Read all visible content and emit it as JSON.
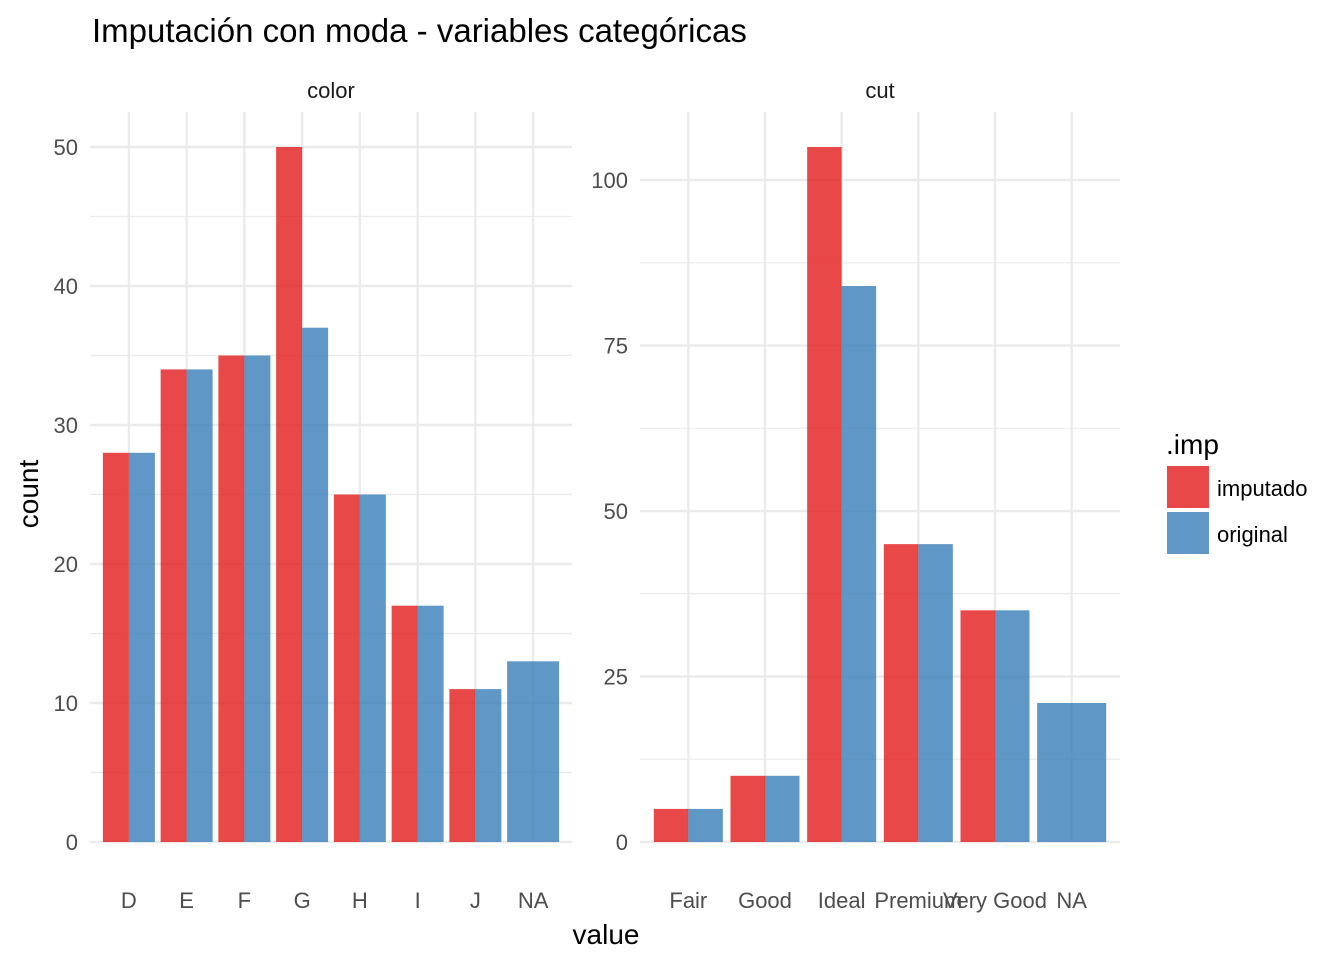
{
  "chart_data": {
    "type": "bar",
    "title": "Imputación con moda - variables categóricas",
    "xlabel": "value",
    "ylabel": "count",
    "legend": {
      "title": ".imp",
      "placement": "right",
      "entries": [
        {
          "name": "imputado",
          "color": "#E41A1C"
        },
        {
          "name": "original",
          "color": "#377EB8"
        }
      ]
    },
    "grid": true,
    "panels": [
      {
        "strip": "color",
        "categories": [
          "D",
          "E",
          "F",
          "G",
          "H",
          "I",
          "J",
          "NA"
        ],
        "ylim": [
          0,
          50
        ],
        "yticks": [
          0,
          10,
          20,
          30,
          40,
          50
        ],
        "series": [
          {
            "name": "imputado",
            "values": [
              28,
              34,
              35,
              50,
              25,
              17,
              11,
              null
            ]
          },
          {
            "name": "original",
            "values": [
              28,
              34,
              35,
              37,
              25,
              17,
              11,
              13
            ]
          }
        ]
      },
      {
        "strip": "cut",
        "categories": [
          "Fair",
          "Good",
          "Ideal",
          "Premium",
          "Very Good",
          "NA"
        ],
        "ylim": [
          0,
          105
        ],
        "yticks": [
          0,
          25,
          50,
          75,
          100
        ],
        "series": [
          {
            "name": "imputado",
            "values": [
              5,
              10,
              105,
              45,
              35,
              null
            ]
          },
          {
            "name": "original",
            "values": [
              5,
              10,
              84,
              45,
              35,
              21
            ]
          }
        ]
      }
    ]
  }
}
